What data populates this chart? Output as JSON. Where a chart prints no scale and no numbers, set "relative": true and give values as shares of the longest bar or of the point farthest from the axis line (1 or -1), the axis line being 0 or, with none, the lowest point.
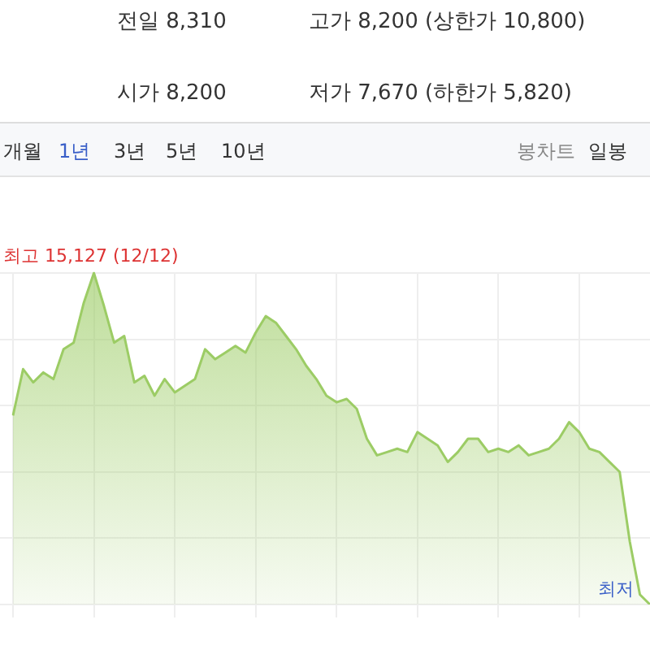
{
  "chart_data": {
    "type": "area",
    "relative": true,
    "grid": true,
    "color": "#9ccc65",
    "categories": [
      null,
      null,
      null,
      null,
      null,
      null,
      null,
      null,
      null,
      null,
      null,
      null,
      null,
      null,
      null,
      null,
      null,
      null,
      null,
      null,
      null,
      null,
      null,
      null,
      null,
      null,
      null,
      null,
      null,
      null,
      null,
      null,
      null,
      null,
      null,
      null,
      null,
      null,
      null,
      null,
      null,
      null,
      null,
      null,
      null,
      null,
      null,
      null,
      null,
      null,
      null,
      null,
      null,
      null,
      null,
      null,
      null,
      null,
      null,
      null,
      null,
      null,
      null,
      null
    ],
    "values": [
      0.57,
      0.71,
      0.67,
      0.7,
      0.68,
      0.77,
      0.79,
      0.91,
      1,
      0.9,
      0.79,
      0.81,
      0.67,
      0.69,
      0.63,
      0.68,
      0.64,
      0.66,
      0.68,
      0.77,
      0.74,
      0.76,
      0.78,
      0.76,
      0.82,
      0.87,
      0.85,
      0.81,
      0.77,
      0.72,
      0.68,
      0.63,
      0.61,
      0.62,
      0.59,
      0.5,
      0.45,
      0.46,
      0.47,
      0.46,
      0.52,
      0.5,
      0.48,
      0.43,
      0.46,
      0.5,
      0.5,
      0.46,
      0.47,
      0.46,
      0.48,
      0.45,
      0.46,
      0.47,
      0.5,
      0.55,
      0.52,
      0.47,
      0.46,
      0.43,
      0.4,
      0.19,
      0.03,
      0
    ],
    "annotations": [
      "전일 8,310",
      "고가 8,200 (상한가 10,800)",
      "시가 8,200",
      "저가 7,670 (하한가 5,820)",
      "개월",
      "1년",
      "3년",
      "5년",
      "10년",
      "봉차트",
      "일봉",
      "최고 15,127 (12/12)",
      "최저"
    ]
  }
}
